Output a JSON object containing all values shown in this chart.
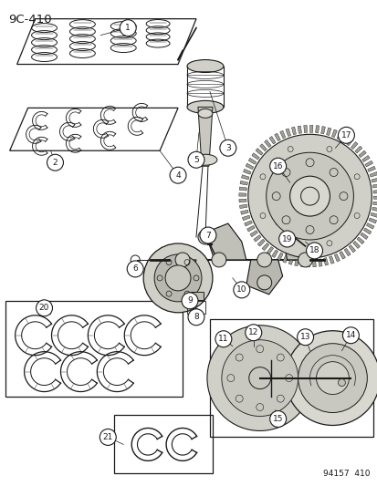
{
  "title": "9C–410",
  "footer": "94157  410",
  "bg_color": "#f5f5f0",
  "line_color": "#1a1a1a",
  "gray_fill": "#c8c8c0",
  "light_gray": "#e0e0d8"
}
